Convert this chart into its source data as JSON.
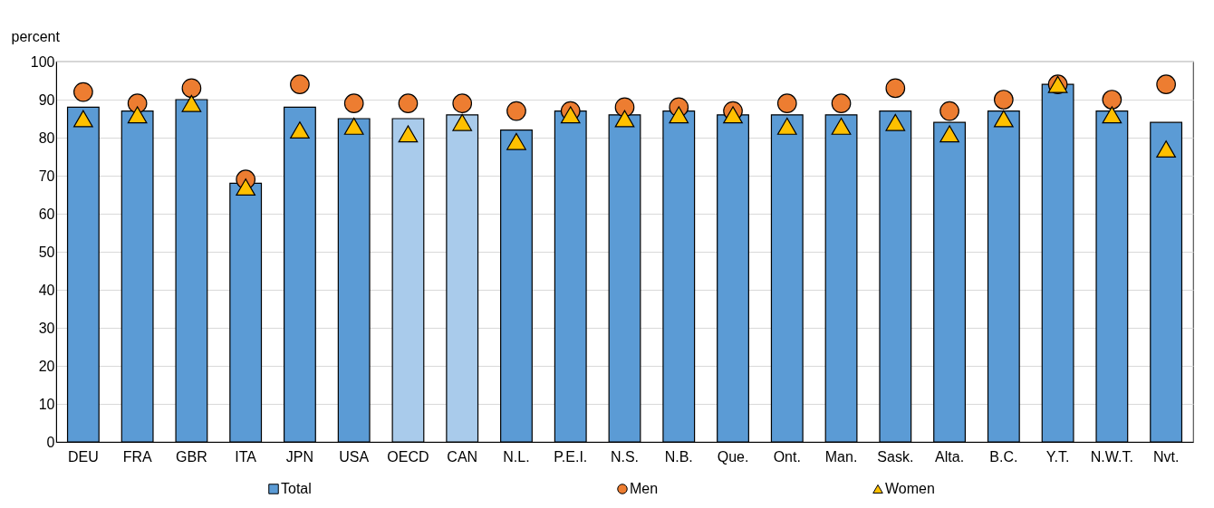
{
  "chart_data": {
    "type": "bar",
    "ylabel": "percent",
    "categories": [
      "DEU",
      "FRA",
      "GBR",
      "ITA",
      "JPN",
      "USA",
      "OECD",
      "CAN",
      "N.L.",
      "P.E.I.",
      "N.S.",
      "N.B.",
      "Que.",
      "Ont.",
      "Man.",
      "Sask.",
      "Alta.",
      "B.C.",
      "Y.T.",
      "N.W.T.",
      "Nvt."
    ],
    "series": [
      {
        "name": "Total",
        "color": "#5b9bd5",
        "colors": [
          "#5b9bd5",
          "#5b9bd5",
          "#5b9bd5",
          "#5b9bd5",
          "#5b9bd5",
          "#5b9bd5",
          "#a9cbeb",
          "#a9cbeb",
          "#5b9bd5",
          "#5b9bd5",
          "#5b9bd5",
          "#5b9bd5",
          "#5b9bd5",
          "#5b9bd5",
          "#5b9bd5",
          "#5b9bd5",
          "#5b9bd5",
          "#5b9bd5",
          "#5b9bd5",
          "#5b9bd5",
          "#5b9bd5"
        ],
        "values": [
          88,
          87,
          90,
          68,
          88,
          85,
          85,
          86,
          82,
          87,
          86,
          87,
          86,
          86,
          86,
          87,
          84,
          87,
          94,
          87,
          84
        ]
      },
      {
        "name": "Men",
        "type": "scatter",
        "marker": "circle",
        "color": "#ed7d31",
        "values": [
          92,
          89,
          93,
          69,
          94,
          89,
          89,
          89,
          87,
          87,
          88,
          88,
          87,
          89,
          89,
          93,
          87,
          90,
          94,
          90,
          94
        ]
      },
      {
        "name": "Women",
        "type": "scatter",
        "marker": "triangle",
        "color": "#ffc000",
        "values": [
          85,
          86,
          89,
          67,
          82,
          83,
          81,
          84,
          79,
          86,
          85,
          86,
          86,
          83,
          83,
          84,
          81,
          85,
          94,
          86,
          77
        ]
      }
    ],
    "ylim": [
      0,
      100
    ],
    "yticks": [
      0,
      10,
      20,
      30,
      40,
      50,
      60,
      70,
      80,
      90,
      100
    ],
    "grid": "y",
    "legend": "bottom"
  }
}
